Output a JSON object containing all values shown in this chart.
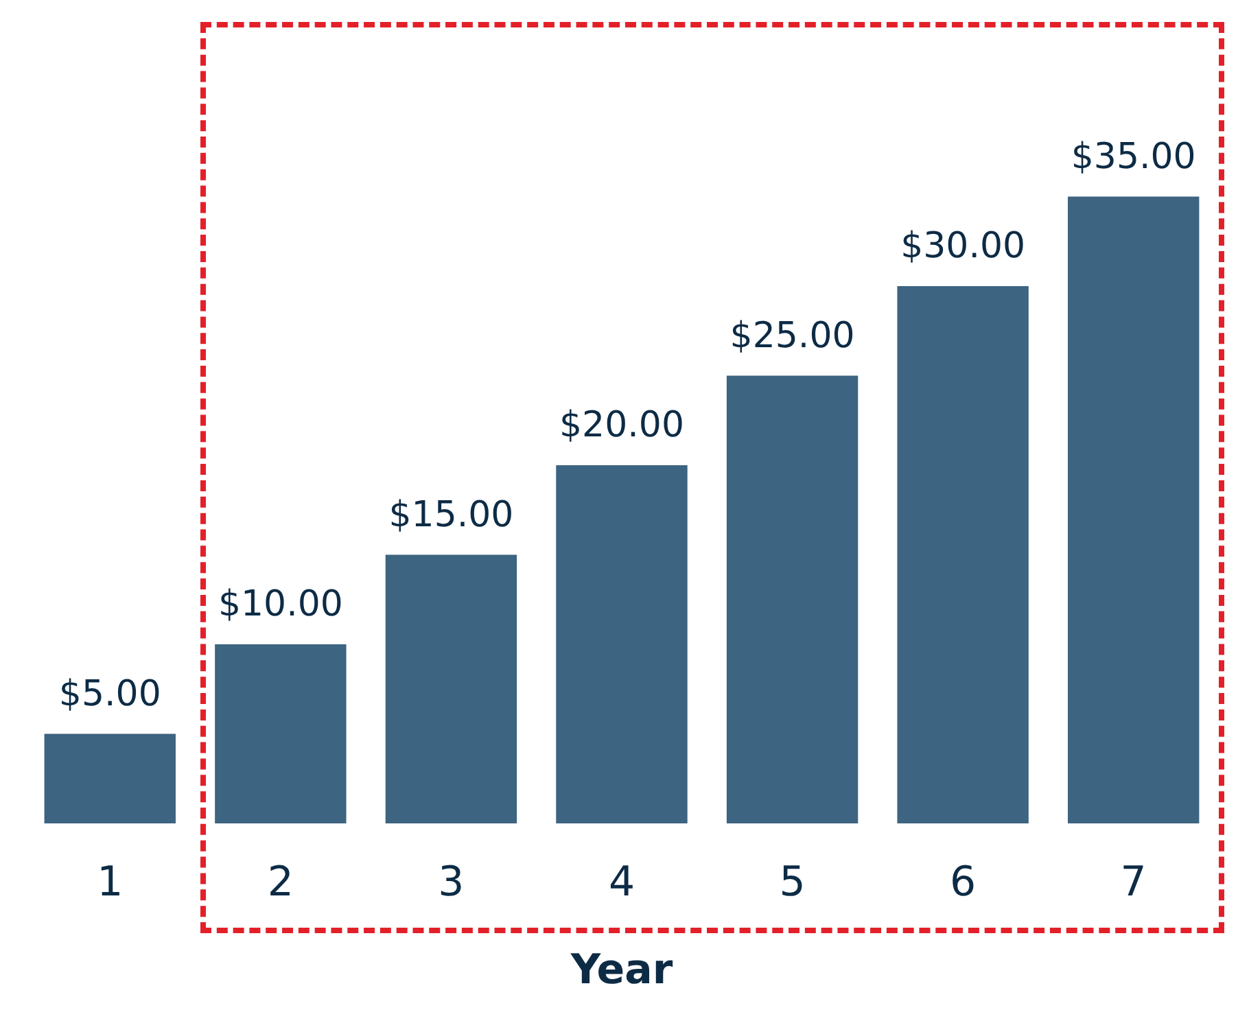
{
  "chart_data": {
    "type": "bar",
    "xlabel": "Year",
    "categories": [
      "1",
      "2",
      "3",
      "4",
      "5",
      "6",
      "7"
    ],
    "values": [
      5,
      10,
      15,
      20,
      25,
      30,
      35
    ],
    "value_labels": [
      "$5.00",
      "$10.00",
      "$15.00",
      "$20.00",
      "$25.00",
      "$30.00",
      "$35.00"
    ],
    "color": "#3d6480"
  }
}
